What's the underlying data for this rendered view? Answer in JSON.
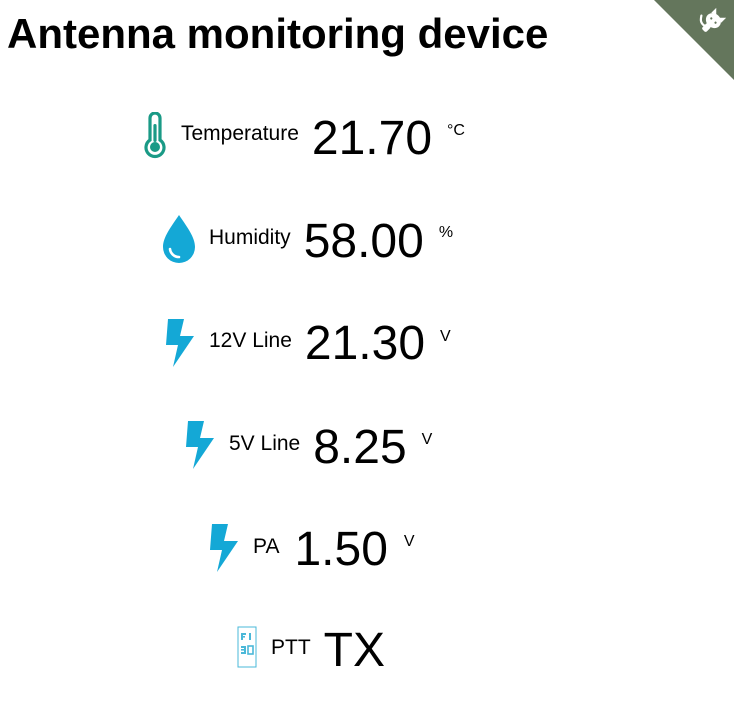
{
  "header": {
    "title": "Antenna monitoring device"
  },
  "corner": {
    "icon": "github-octocat-icon",
    "color": "#64765c"
  },
  "readings": [
    {
      "id": "temperature",
      "icon": "thermometer-icon",
      "icon_color": "#1a9a86",
      "label": "Temperature",
      "value": "21.70",
      "unit": "°C"
    },
    {
      "id": "humidity",
      "icon": "water-drop-icon",
      "icon_color": "#14a8d6",
      "label": "Humidity",
      "value": "58.00",
      "unit": "%"
    },
    {
      "id": "12v-line",
      "icon": "lightning-bolt-icon",
      "icon_color": "#14a8d6",
      "label": "12V Line",
      "value": "21.30",
      "unit": "V"
    },
    {
      "id": "5v-line",
      "icon": "lightning-bolt-icon",
      "icon_color": "#14a8d6",
      "label": "5V Line",
      "value": "8.25",
      "unit": "V"
    },
    {
      "id": "pa",
      "icon": "lightning-bolt-icon",
      "icon_color": "#14a8d6",
      "label": "PA",
      "value": "1.50",
      "unit": "V"
    },
    {
      "id": "ptt",
      "icon": "broken-image-icon",
      "icon_color": "#4ab8d8",
      "label": "PTT",
      "value": "TX",
      "unit": ""
    }
  ]
}
